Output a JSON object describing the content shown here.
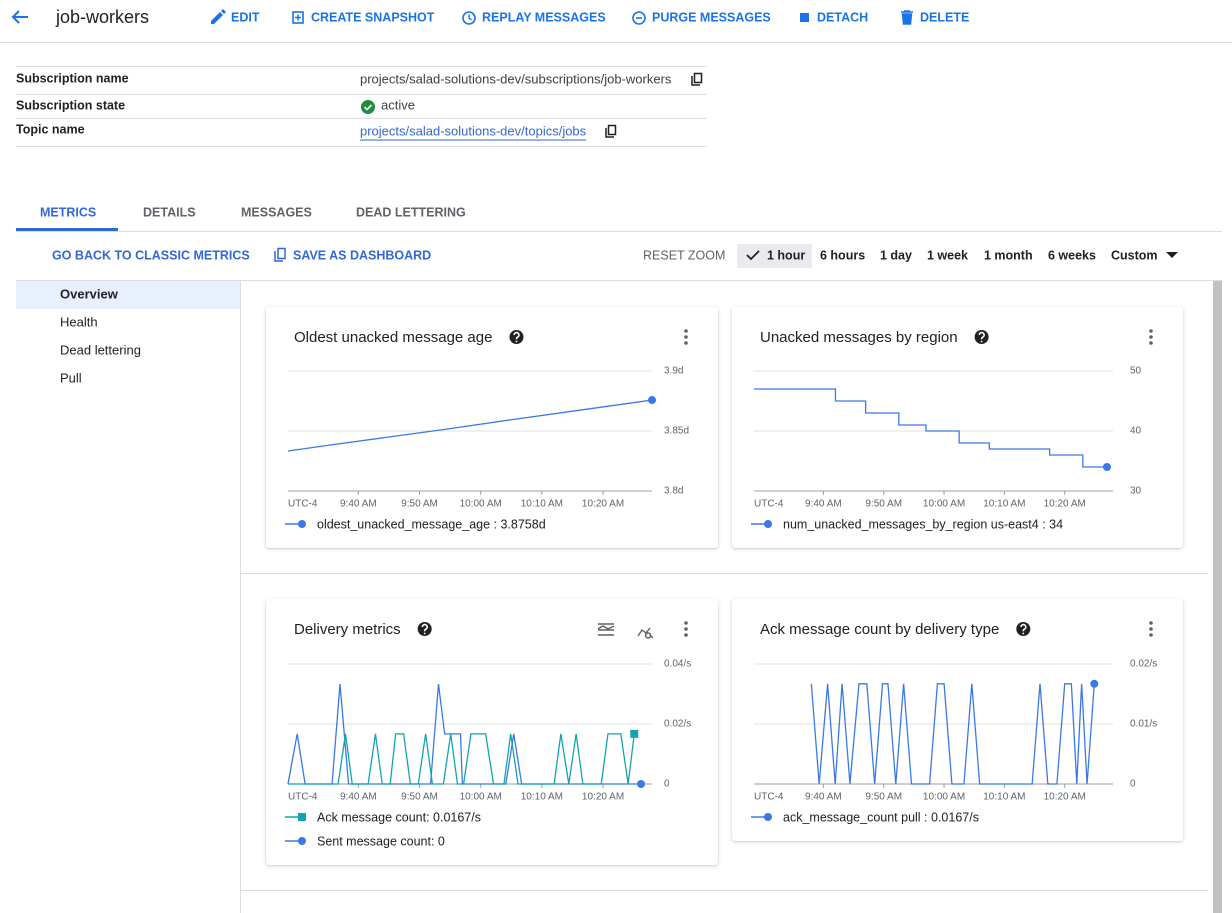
{
  "header": {
    "title": "job-workers",
    "actions": [
      "EDIT",
      "CREATE SNAPSHOT",
      "REPLAY MESSAGES",
      "PURGE MESSAGES",
      "DETACH",
      "DELETE"
    ]
  },
  "info": [
    {
      "label": "Subscription name",
      "value": "projects/salad-solutions-dev/subscriptions/job-workers"
    },
    {
      "label": "Subscription state",
      "value": "active"
    },
    {
      "label": "Topic name",
      "value": "projects/salad-solutions-dev/topics/jobs"
    }
  ],
  "tabs": [
    "METRICS",
    "DETAILS",
    "MESSAGES",
    "DEAD LETTERING"
  ],
  "toolbar": {
    "links": [
      "GO BACK TO CLASSIC METRICS",
      "SAVE AS DASHBOARD"
    ],
    "reset": "RESET ZOOM",
    "ranges": [
      "1 hour",
      "6 hours",
      "1 day",
      "1 week",
      "1 month",
      "6 weeks"
    ],
    "custom": "Custom"
  },
  "sidebar": [
    "Overview",
    "Health",
    "Dead lettering",
    "Pull"
  ],
  "chart_data": [
    {
      "type": "line",
      "title": "Oldest unacked message age",
      "x_label": "UTC-4",
      "xlim": [
        568.5,
        628
      ],
      "xticks": [
        {
          "value": 580,
          "label": "9:40 AM"
        },
        {
          "value": 590,
          "label": "9:50 AM"
        },
        {
          "value": 600,
          "label": "10:00 AM"
        },
        {
          "value": 610,
          "label": "10:10 AM"
        },
        {
          "value": 620,
          "label": "10:20 AM"
        }
      ],
      "ylim": [
        3.8,
        3.9
      ],
      "yticks": [
        {
          "value": 3.8,
          "label": "3.8d"
        },
        {
          "value": 3.85,
          "label": "3.85d"
        },
        {
          "value": 3.9,
          "label": "3.9d"
        }
      ],
      "grid": true,
      "series": [
        {
          "name": "oldest_unacked_message_age : 3.8758d",
          "color": "#3b78e7",
          "marker": "circle",
          "x": [
            568.5,
            575,
            585,
            595,
            605,
            615,
            628
          ],
          "values": [
            3.8333,
            3.838,
            3.845,
            3.852,
            3.8594,
            3.8665,
            3.8758
          ]
        }
      ]
    },
    {
      "type": "line",
      "title": "Unacked messages by region",
      "x_label": "UTC-4",
      "xlim": [
        568.5,
        628
      ],
      "xticks": [
        {
          "value": 580,
          "label": "9:40 AM"
        },
        {
          "value": 590,
          "label": "9:50 AM"
        },
        {
          "value": 600,
          "label": "10:00 AM"
        },
        {
          "value": 610,
          "label": "10:10 AM"
        },
        {
          "value": 620,
          "label": "10:20 AM"
        }
      ],
      "ylim": [
        30,
        50
      ],
      "yticks": [
        30,
        40,
        50
      ],
      "grid": true,
      "series": [
        {
          "name": "num_unacked_messages_by_region us-east4 : 34",
          "color": "#3b78e7",
          "marker": "circle",
          "x": [
            568.5,
            582,
            582,
            587,
            587,
            592.5,
            592.5,
            597,
            597,
            602.5,
            602.5,
            607.5,
            607.5,
            617.5,
            617.5,
            623,
            623,
            627
          ],
          "values": [
            47,
            47,
            45,
            45,
            43,
            43,
            41,
            41,
            40,
            40,
            38,
            38,
            37,
            37,
            36,
            36,
            34,
            34
          ]
        }
      ]
    },
    {
      "type": "line",
      "title": "Delivery metrics",
      "x_label": "UTC-4",
      "xlim": [
        568.5,
        628
      ],
      "xticks": [
        {
          "value": 580,
          "label": "9:40 AM"
        },
        {
          "value": 590,
          "label": "9:50 AM"
        },
        {
          "value": 600,
          "label": "10:00 AM"
        },
        {
          "value": 610,
          "label": "10:10 AM"
        },
        {
          "value": 620,
          "label": "10:20 AM"
        }
      ],
      "ylim": [
        0,
        0.04
      ],
      "yticks": [
        0,
        {
          "value": 0.02,
          "label": "0.02/s"
        },
        {
          "value": 0.04,
          "label": "0.04/s"
        }
      ],
      "grid": true,
      "series": [
        {
          "name": "Ack message count: 0.0167/s",
          "color": "#12a4af",
          "marker": "square",
          "x": [
            568.5,
            576.7,
            577.9,
            579,
            581.6,
            582.8,
            583.9,
            585.2,
            586.1,
            587.4,
            588.5,
            589.8,
            591,
            592.1,
            593.9,
            595.1,
            596.2,
            597.2,
            598.4,
            600.8,
            602.1,
            603.8,
            604.9,
            606.1,
            612,
            613.1,
            614.4,
            615.6,
            616.7,
            619.7,
            620.8,
            622.9,
            624.1,
            625.1
          ],
          "values": [
            0,
            0,
            0.0167,
            0,
            0,
            0.0167,
            0,
            0,
            0.0167,
            0.0167,
            0,
            0,
            0.0167,
            0,
            0,
            0.0167,
            0,
            0,
            0.0167,
            0.0167,
            0,
            0,
            0.0167,
            0,
            0,
            0.0167,
            0,
            0.0167,
            0,
            0,
            0.0167,
            0.0167,
            0,
            0.0167
          ]
        },
        {
          "name": "Sent message count: 0",
          "color": "#3b78e7",
          "marker": "circle",
          "x": [
            568.5,
            570,
            571.3,
            575.7,
            577,
            578.4,
            591.8,
            593.1,
            594.1,
            596.7,
            597,
            604.1,
            605.4,
            606.7,
            626.2
          ],
          "values": [
            0,
            0.0167,
            0,
            0,
            0.0333,
            0,
            0,
            0.0333,
            0.0167,
            0.0167,
            0,
            0,
            0.0167,
            0,
            0
          ]
        }
      ]
    },
    {
      "type": "line",
      "title": "Ack message count by delivery type",
      "x_label": "UTC-4",
      "xlim": [
        568.5,
        628
      ],
      "xticks": [
        {
          "value": 580,
          "label": "9:40 AM"
        },
        {
          "value": 590,
          "label": "9:50 AM"
        },
        {
          "value": 600,
          "label": "10:00 AM"
        },
        {
          "value": 610,
          "label": "10:10 AM"
        },
        {
          "value": 620,
          "label": "10:20 AM"
        }
      ],
      "ylim": [
        0,
        0.02
      ],
      "yticks": [
        0,
        {
          "value": 0.01,
          "label": "0.01/s"
        },
        {
          "value": 0.02,
          "label": "0.02/s"
        }
      ],
      "grid": true,
      "series": [
        {
          "name": "ack_message_count pull : 0.0167/s",
          "color": "#3b78e7",
          "marker": "circle",
          "x": [
            578,
            579.3,
            580.7,
            581.95,
            583.1,
            584.4,
            585.9,
            587.2,
            588.5,
            589.8,
            590.7,
            592,
            593.3,
            594.6,
            597.6,
            598.9,
            600,
            601.3,
            603.3,
            604.6,
            605.9,
            614.6,
            615.9,
            617.2,
            618.7,
            620,
            621.1,
            622,
            622.8,
            623.7,
            624.9
          ],
          "values": [
            0.0167,
            0,
            0.0167,
            0,
            0.0167,
            0,
            0.0167,
            0.0167,
            0,
            0.0167,
            0.0167,
            0,
            0.0167,
            0,
            0,
            0.0167,
            0.0167,
            0,
            0,
            0.0167,
            0,
            0,
            0.0167,
            0,
            0,
            0.0167,
            0.0167,
            0,
            0.0167,
            0,
            0.0167
          ]
        }
      ]
    }
  ]
}
